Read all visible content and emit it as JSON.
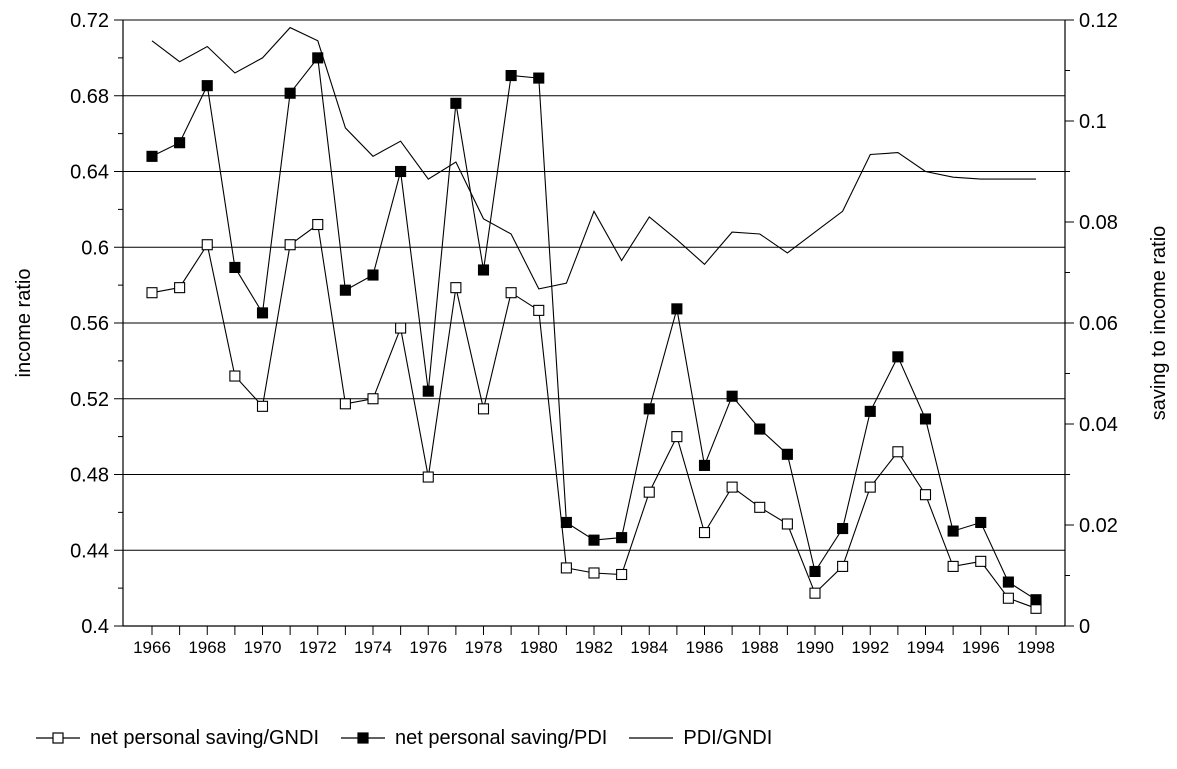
{
  "chart_data": {
    "type": "line",
    "title": "",
    "ylabel": "income ratio",
    "y2label": "saving to income ratio",
    "xlabel": "",
    "x": [
      1966,
      1967,
      1968,
      1969,
      1970,
      1971,
      1972,
      1973,
      1974,
      1975,
      1976,
      1977,
      1978,
      1979,
      1980,
      1981,
      1982,
      1983,
      1984,
      1985,
      1986,
      1987,
      1988,
      1989,
      1990,
      1991,
      1992,
      1993,
      1994,
      1995,
      1996,
      1997,
      1998
    ],
    "xticks": [
      1966,
      1968,
      1970,
      1972,
      1974,
      1976,
      1978,
      1980,
      1982,
      1984,
      1986,
      1988,
      1990,
      1992,
      1994,
      1996,
      1998
    ],
    "xlim": [
      1966,
      1998
    ],
    "ylim": [
      0.4,
      0.72
    ],
    "yticks": [
      "0.4",
      "0.44",
      "0.48",
      "0.52",
      "0.56",
      "0.6",
      "0.64",
      "0.68",
      "0.72"
    ],
    "y2lim": [
      0,
      0.12
    ],
    "y2ticks": [
      "0",
      "0.02",
      "0.04",
      "0.06",
      "0.08",
      "0.1",
      "0.12"
    ],
    "grid": "horizontal",
    "legend_position": "bottom",
    "series": [
      {
        "name": "net personal saving/GNDI",
        "axis": "right",
        "marker": "open-square",
        "values": [
          0.066,
          0.067,
          0.0755,
          0.0495,
          0.0435,
          0.0755,
          0.0795,
          0.044,
          0.045,
          0.059,
          0.0295,
          0.067,
          0.043,
          0.066,
          0.0625,
          0.0115,
          0.0105,
          0.0102,
          0.0265,
          0.0375,
          0.0185,
          0.0275,
          0.0235,
          0.0202,
          0.0065,
          0.0118,
          0.0275,
          0.0345,
          0.026,
          0.0118,
          0.0128,
          0.0055,
          0.0035
        ]
      },
      {
        "name": "net personal saving/PDI",
        "axis": "right",
        "marker": "filled-square",
        "values": [
          0.093,
          0.0957,
          0.107,
          0.071,
          0.062,
          0.1055,
          0.1125,
          0.0665,
          0.0695,
          0.09,
          0.0465,
          0.1035,
          0.0705,
          0.109,
          0.1085,
          0.0205,
          0.017,
          0.0175,
          0.043,
          0.0628,
          0.0318,
          0.0455,
          0.039,
          0.034,
          0.0108,
          0.0193,
          0.0425,
          0.0533,
          0.041,
          0.0188,
          0.0205,
          0.0087,
          0.0052
        ]
      },
      {
        "name": "PDI/GNDI",
        "axis": "left",
        "marker": "none",
        "values": [
          0.709,
          0.698,
          0.706,
          0.692,
          0.7,
          0.716,
          0.709,
          0.663,
          0.648,
          0.656,
          0.636,
          0.645,
          0.615,
          0.607,
          0.578,
          0.581,
          0.619,
          0.593,
          0.616,
          0.604,
          0.591,
          0.608,
          0.607,
          0.597,
          0.608,
          0.619,
          0.649,
          0.65,
          0.64,
          0.637,
          0.636,
          0.636,
          0.636
        ]
      }
    ]
  }
}
